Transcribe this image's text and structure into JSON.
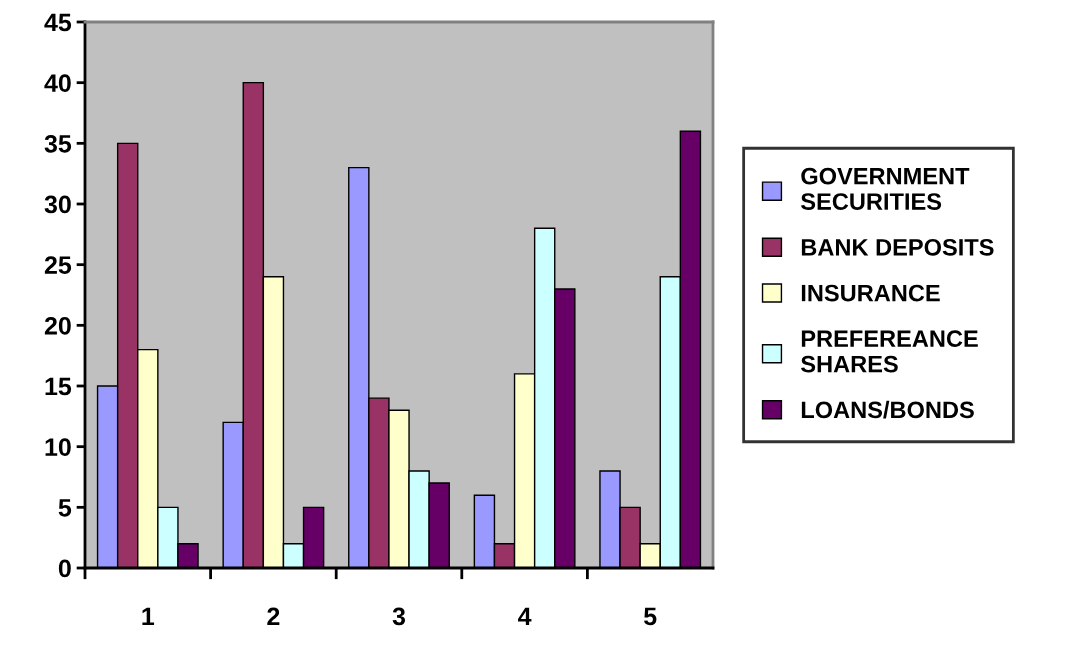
{
  "chart_data": {
    "type": "bar",
    "categories": [
      "1",
      "2",
      "3",
      "4",
      "5"
    ],
    "series": [
      {
        "name": "GOVERNMENT\nSECURITIES",
        "color": "#9999ff",
        "values": [
          15,
          12,
          33,
          6,
          8
        ]
      },
      {
        "name": "BANK DEPOSITS",
        "color": "#993366",
        "values": [
          35,
          40,
          14,
          2,
          5
        ]
      },
      {
        "name": "INSURANCE",
        "color": "#ffffcc",
        "values": [
          18,
          24,
          13,
          16,
          2
        ]
      },
      {
        "name": "PREFEREANCE\nSHARES",
        "color": "#ccffff",
        "values": [
          5,
          2,
          8,
          28,
          24
        ]
      },
      {
        "name": "LOANS/BONDS",
        "color": "#660066",
        "values": [
          2,
          5,
          7,
          23,
          36
        ]
      }
    ],
    "ylim": [
      0,
      45
    ],
    "yticks": [
      0,
      5,
      10,
      15,
      20,
      25,
      30,
      35,
      40,
      45
    ],
    "grid": false,
    "legend": "right"
  }
}
